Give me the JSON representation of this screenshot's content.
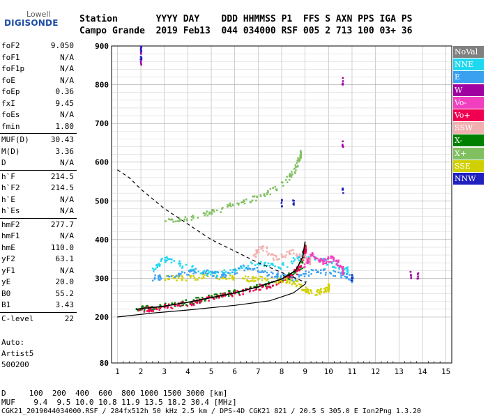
{
  "logo": {
    "top": "Lowell",
    "main": "DIGISONDE"
  },
  "header": {
    "line1": "Station       YYYY DAY    DDD HHMMSS P1  FFS S AXN PPS IGA PS",
    "line2": "Campo Grande  2019 Feb13  044 034000 RSF 005 2 713 100 03+ 36"
  },
  "params": [
    {
      "label": "foF2",
      "value": "9.050"
    },
    {
      "label": "foF1",
      "value": "N/A"
    },
    {
      "label": "foF1p",
      "value": "N/A"
    },
    {
      "label": "foE",
      "value": "N/A"
    },
    {
      "label": "foEp",
      "value": "0.36"
    },
    {
      "label": "fxI",
      "value": "9.45"
    },
    {
      "label": "foEs",
      "value": "N/A"
    },
    {
      "label": "fmin",
      "value": "1.80"
    },
    {
      "label": "MUF(D)",
      "value": "30.43"
    },
    {
      "label": "M(D)",
      "value": "3.36"
    },
    {
      "label": "D",
      "value": "N/A"
    },
    {
      "label": "h`F",
      "value": "214.5"
    },
    {
      "label": "h`F2",
      "value": "214.5"
    },
    {
      "label": "h`E",
      "value": "N/A"
    },
    {
      "label": "h`Es",
      "value": "N/A"
    },
    {
      "label": "hmF2",
      "value": "277.7"
    },
    {
      "label": "hmF1",
      "value": "N/A"
    },
    {
      "label": "hmE",
      "value": "110.0"
    },
    {
      "label": "yF2",
      "value": "63.1"
    },
    {
      "label": "yF1",
      "value": "N/A"
    },
    {
      "label": "yE",
      "value": "20.0"
    },
    {
      "label": "B0",
      "value": "55.2"
    },
    {
      "label": "B1",
      "value": "3.43"
    },
    {
      "label": "C-level",
      "value": "22"
    }
  ],
  "auto": {
    "line1": "Auto:",
    "line2": "Artist5",
    "line3": "500200"
  },
  "legend": [
    {
      "label": "NoVal",
      "color": "#808080"
    },
    {
      "label": "NNE",
      "color": "#1fd8f0"
    },
    {
      "label": "E",
      "color": "#3aa0f0"
    },
    {
      "label": "W",
      "color": "#a000a0"
    },
    {
      "label": "Vo-",
      "color": "#f040c0"
    },
    {
      "label": "Vo+",
      "color": "#f00050"
    },
    {
      "label": "SSW",
      "color": "#f0b0b0"
    },
    {
      "label": "X-",
      "color": "#008000"
    },
    {
      "label": "X+",
      "color": "#80c060"
    },
    {
      "label": "SSE",
      "color": "#d0d000"
    },
    {
      "label": "NNW",
      "color": "#2020c0"
    }
  ],
  "footer": {
    "d_row": "D     100  200  400  600  800 1000 1500 3000 [km]",
    "muf_row": "MUF    9.4  9.5 10.0 10.8 11.9 13.5 18.2 30.4 [MHz]",
    "file_row": "CGK21_2019044034000.RSF / 284fx512h 50 kHz 2.5 km / DPS-4D CGK21 821 / 20.5 S 305.0 E Ion2Png 1.3.20"
  },
  "chart_data": {
    "type": "scatter",
    "title": "",
    "xlabel": "",
    "ylabel": "",
    "xlim": [
      0.75,
      15.25
    ],
    "ylim": [
      80,
      900
    ],
    "x_ticks": [
      1,
      2,
      3,
      4,
      5,
      6,
      7,
      8,
      9,
      10,
      11,
      12,
      13,
      14,
      15
    ],
    "y_ticks": [
      80,
      200,
      300,
      400,
      500,
      600,
      700,
      800,
      900
    ],
    "grid": true,
    "series": [
      {
        "name": "X-",
        "color": "#008000",
        "x": [
          1.8,
          2.5,
          3.5,
          4.5,
          5.5,
          6.5,
          7.5,
          8.3,
          8.8,
          9.0
        ],
        "y": [
          220,
          225,
          232,
          245,
          258,
          270,
          285,
          305,
          330,
          380
        ]
      },
      {
        "name": "Vo+",
        "color": "#f00050",
        "x": [
          1.9,
          2.5,
          3.5,
          4.5,
          5.5,
          6.5,
          7.5,
          8.3,
          8.8,
          9.0
        ],
        "y": [
          218,
          222,
          230,
          242,
          255,
          268,
          283,
          303,
          328,
          375
        ]
      },
      {
        "name": "SSE",
        "color": "#d0d000",
        "x": [
          3.0,
          4.0,
          5.0,
          6.0,
          7.0,
          8.0,
          8.6,
          9.0,
          9.5,
          10.0
        ],
        "y": [
          300,
          302,
          305,
          300,
          298,
          295,
          290,
          270,
          262,
          275
        ]
      },
      {
        "name": "X+",
        "color": "#80c060",
        "x": [
          3.0,
          4.0,
          5.0,
          6.0,
          7.0,
          8.0,
          8.5,
          8.8
        ],
        "y": [
          445,
          455,
          470,
          490,
          510,
          540,
          575,
          620
        ]
      },
      {
        "name": "NNE",
        "color": "#1fd8f0",
        "x": [
          2.5,
          3.0,
          4.0,
          5.0,
          6.0,
          7.0,
          8.0,
          9.0,
          10.0,
          10.8
        ],
        "y": [
          320,
          350,
          330,
          310,
          320,
          340,
          330,
          360,
          340,
          320
        ]
      },
      {
        "name": "E",
        "color": "#3aa0f0",
        "x": [
          2.5,
          3.5,
          4.5,
          5.5,
          6.5,
          7.5,
          8.5,
          9.5,
          10.5,
          11.0
        ],
        "y": [
          300,
          310,
          320,
          305,
          330,
          310,
          300,
          320,
          310,
          300
        ]
      },
      {
        "name": "W",
        "color": "#a000a0",
        "x": [
          2.0,
          2.0,
          10.6,
          10.6,
          13.5,
          13.8
        ],
        "y": [
          885,
          860,
          810,
          650,
          310,
          308
        ]
      },
      {
        "name": "NNW",
        "color": "#2020c0",
        "x": [
          2.0,
          2.0,
          8.0,
          8.5,
          10.6,
          11.0
        ],
        "y": [
          890,
          870,
          495,
          500,
          530,
          300
        ]
      },
      {
        "name": "SSW",
        "color": "#f0b0b0",
        "x": [
          6.8,
          7.2,
          7.8,
          8.4,
          9.2
        ],
        "y": [
          360,
          380,
          350,
          370,
          345
        ]
      },
      {
        "name": "Vo-",
        "color": "#f040c0",
        "x": [
          8.9,
          9.3,
          9.8,
          10.2,
          10.6
        ],
        "y": [
          330,
          360,
          340,
          355,
          320
        ]
      }
    ],
    "profile_solid": {
      "x": [
        1.0,
        2.5,
        4.0,
        6.0,
        7.5,
        8.5,
        9.0,
        9.05
      ],
      "y": [
        200,
        210,
        218,
        230,
        242,
        262,
        285,
        292
      ]
    },
    "profile_dashed": {
      "x": [
        1.0,
        1.5,
        2.0,
        3.0,
        4.0,
        5.0,
        6.0,
        7.0,
        8.0,
        9.0
      ],
      "y": [
        580,
        560,
        530,
        480,
        440,
        400,
        370,
        340,
        315,
        290
      ]
    },
    "trace_curve": {
      "x": [
        1.8,
        3.0,
        4.0,
        5.0,
        6.0,
        7.0,
        8.0,
        8.6,
        8.9,
        9.0
      ],
      "y": [
        220,
        228,
        238,
        250,
        262,
        278,
        298,
        320,
        355,
        395
      ]
    }
  }
}
